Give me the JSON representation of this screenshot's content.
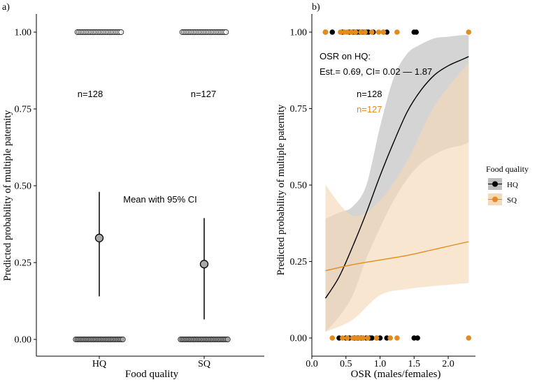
{
  "chart_data": [
    {
      "panel_label": "a)",
      "type": "scatter",
      "xlabel": "Food quality",
      "ylabel": "Predicted probability of multiple paternity",
      "categories": [
        "HQ",
        "SQ"
      ],
      "yticks": [
        "0.00",
        "0.25",
        "0.50",
        "0.75",
        "1.00"
      ],
      "ylim": [
        0,
        1
      ],
      "summary": [
        {
          "group": "HQ",
          "mean": 0.33,
          "ci_low": 0.14,
          "ci_high": 0.48,
          "n_label": "n=128"
        },
        {
          "group": "SQ",
          "mean": 0.245,
          "ci_low": 0.065,
          "ci_high": 0.395,
          "n_label": "n=127"
        }
      ],
      "annotation": "Mean with 95% CI",
      "observations": {
        "HQ": {
          "y1": [
            -0.26,
            -0.24,
            -0.22,
            -0.2,
            -0.18,
            -0.16,
            -0.14,
            -0.12,
            -0.1,
            -0.08,
            -0.06,
            -0.04,
            -0.02,
            0,
            0.02,
            0.04,
            0.06,
            0.08,
            0.1,
            0.12,
            0.14,
            0.16,
            0.18,
            0.2,
            0.22,
            0.24,
            0.26
          ],
          "y0": [
            -0.28,
            -0.26,
            -0.24,
            -0.22,
            -0.2,
            -0.18,
            -0.16,
            -0.14,
            -0.12,
            -0.1,
            -0.08,
            -0.06,
            -0.04,
            -0.02,
            0,
            0.02,
            0.04,
            0.06,
            0.08,
            0.1,
            0.12,
            0.14,
            0.16,
            0.18,
            0.2,
            0.22,
            0.24,
            0.26,
            0.28
          ]
        },
        "SQ": {
          "y1": [
            -0.26,
            -0.24,
            -0.22,
            -0.2,
            -0.18,
            -0.16,
            -0.14,
            -0.12,
            -0.1,
            -0.08,
            -0.06,
            -0.04,
            -0.02,
            0,
            0.02,
            0.04,
            0.06,
            0.08,
            0.1,
            0.12,
            0.14,
            0.16,
            0.18,
            0.2,
            0.22,
            0.24,
            0.26
          ],
          "y0": [
            -0.28,
            -0.26,
            -0.24,
            -0.22,
            -0.2,
            -0.18,
            -0.16,
            -0.14,
            -0.12,
            -0.1,
            -0.08,
            -0.06,
            -0.04,
            -0.02,
            0,
            0.02,
            0.04,
            0.06,
            0.08,
            0.1,
            0.12,
            0.14,
            0.16,
            0.18,
            0.2,
            0.22,
            0.24,
            0.26,
            0.28
          ]
        }
      }
    },
    {
      "panel_label": "b)",
      "type": "line",
      "xlabel": "OSR (males/females)",
      "ylabel": "Predicted probability of multiple paternity",
      "xticks": [
        "0.0",
        "0.5",
        "1.0",
        "1.5",
        "2.0"
      ],
      "yticks": [
        "0.00",
        "0.25",
        "0.50",
        "0.75",
        "1.00"
      ],
      "xlim": [
        0,
        2.35
      ],
      "ylim": [
        0,
        1
      ],
      "annotation_title": "OSR on HQ:",
      "annotation_est": "Est.= 0.69, CI= 0.02 — 1.87",
      "n_labels": [
        {
          "text": "n=128",
          "color": "#000000"
        },
        {
          "text": "n=127",
          "color": "#e38b1c"
        }
      ],
      "legend": {
        "title": "Food quality",
        "position": "right",
        "entries": [
          {
            "label": "HQ",
            "color": "#000000"
          },
          {
            "label": "SQ",
            "color": "#e38b1c"
          }
        ]
      },
      "series": [
        {
          "name": "HQ",
          "color": "#000000",
          "band_color": "#bdbdbd",
          "x": [
            0.2,
            0.4,
            0.6,
            0.8,
            1.0,
            1.2,
            1.4,
            1.6,
            1.8,
            2.0,
            2.2,
            2.3
          ],
          "y": [
            0.13,
            0.2,
            0.3,
            0.41,
            0.53,
            0.64,
            0.74,
            0.81,
            0.86,
            0.89,
            0.91,
            0.92
          ],
          "lower": [
            0.02,
            0.07,
            0.14,
            0.26,
            0.36,
            0.45,
            0.52,
            0.57,
            0.6,
            0.62,
            0.63,
            0.64
          ],
          "upper": [
            0.39,
            0.41,
            0.43,
            0.5,
            0.69,
            0.85,
            0.93,
            0.96,
            0.98,
            0.985,
            0.99,
            0.99
          ],
          "obs_x1": [
            0.2,
            0.3,
            0.45,
            0.55,
            0.6,
            0.63,
            0.66,
            0.7,
            0.73,
            0.77,
            0.8,
            0.83,
            0.9,
            1.05,
            1.1,
            1.5,
            1.53
          ],
          "obs_x0": [
            0.4,
            0.5,
            0.55,
            0.62,
            0.65,
            0.68,
            0.72,
            0.75,
            0.8,
            0.85,
            0.88,
            0.95,
            1.0,
            1.1,
            1.5,
            1.55
          ]
        },
        {
          "name": "SQ",
          "color": "#e38b1c",
          "band_color": "#f5d9b8",
          "x": [
            0.2,
            0.6,
            1.0,
            1.4,
            1.8,
            2.3
          ],
          "y": [
            0.22,
            0.24,
            0.255,
            0.27,
            0.29,
            0.315
          ],
          "lower": [
            0.02,
            0.06,
            0.14,
            0.16,
            0.17,
            0.18
          ],
          "upper": [
            0.5,
            0.4,
            0.45,
            0.58,
            0.76,
            0.9
          ],
          "obs_x1": [
            0.2,
            0.42,
            0.48,
            0.52,
            0.58,
            0.64,
            0.72,
            0.78,
            0.88,
            0.98,
            1.05,
            1.25,
            2.3
          ],
          "obs_x0": [
            0.3,
            0.45,
            0.52,
            0.6,
            0.65,
            0.7,
            0.75,
            0.82,
            0.95,
            1.15,
            1.25,
            2.3
          ]
        }
      ]
    }
  ]
}
